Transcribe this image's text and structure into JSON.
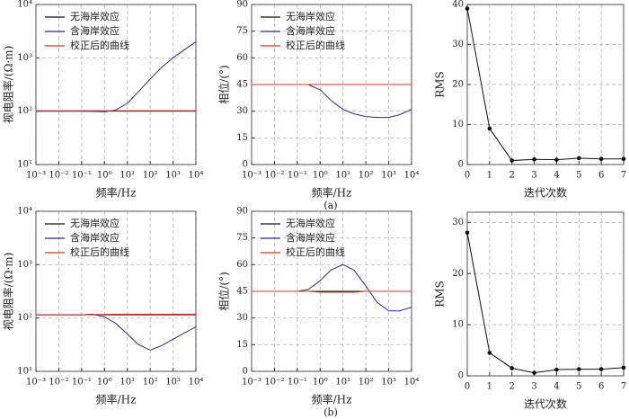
{
  "panel_labels": [
    "(a)",
    "(b)"
  ],
  "chart_data": [
    {
      "type": "line",
      "xscale": "log",
      "yscale": "log",
      "grid": true,
      "legend": "upper left",
      "xlabel": "频率/Hz",
      "ylabel": "视电阻率/(Ω·m)",
      "xlim": [
        0.001,
        10000
      ],
      "ylim": [
        10,
        10000
      ],
      "xticks": [
        {
          "value": 0.001,
          "label": "10⁻³"
        },
        {
          "value": 0.01,
          "label": "10⁻²"
        },
        {
          "value": 0.1,
          "label": "10⁻¹"
        },
        {
          "value": 1,
          "label": "10⁰"
        },
        {
          "value": 10,
          "label": "10¹"
        },
        {
          "value": 100,
          "label": "10²"
        },
        {
          "value": 1000,
          "label": "10³"
        },
        {
          "value": 10000,
          "label": "10⁴"
        }
      ],
      "yticks": [
        {
          "value": 10,
          "label": "10¹"
        },
        {
          "value": 100,
          "label": "10²"
        },
        {
          "value": 1000,
          "label": "10³"
        },
        {
          "value": 10000,
          "label": "10⁴"
        }
      ],
      "x": [
        0.001,
        0.01,
        0.1,
        1,
        3,
        10,
        30,
        100,
        300,
        1000,
        3000,
        10000
      ],
      "series": [
        {
          "name": "无海岸效应",
          "color": "#111111",
          "values": [
            100,
            100,
            100,
            100,
            100,
            100,
            100,
            100,
            100,
            100,
            100,
            100
          ]
        },
        {
          "name": "含海岸效应",
          "color": "#2b2b8f",
          "values": [
            100,
            100,
            100,
            98,
            105,
            140,
            230,
            400,
            650,
            1000,
            1400,
            2000
          ]
        },
        {
          "name": "校正后的曲线",
          "color": "#d03a2f",
          "values": [
            102,
            102,
            102,
            102,
            102,
            102,
            102,
            102,
            102,
            102,
            102,
            102
          ]
        }
      ]
    },
    {
      "type": "line",
      "xscale": "log",
      "yscale": "linear",
      "grid": true,
      "legend": "upper left",
      "xlabel": "频率/Hz",
      "ylabel": "相位/(°)",
      "xlim": [
        0.001,
        10000
      ],
      "ylim": [
        0,
        90
      ],
      "xticks": [
        {
          "value": 0.001,
          "label": "10⁻³"
        },
        {
          "value": 0.01,
          "label": "10⁻²"
        },
        {
          "value": 0.1,
          "label": "10⁻¹"
        },
        {
          "value": 1,
          "label": "10⁰"
        },
        {
          "value": 10,
          "label": "10¹"
        },
        {
          "value": 100,
          "label": "10²"
        },
        {
          "value": 1000,
          "label": "10³"
        },
        {
          "value": 10000,
          "label": "10⁴"
        }
      ],
      "yticks": [
        0,
        15,
        30,
        45,
        60,
        75,
        90
      ],
      "x": [
        0.001,
        0.01,
        0.1,
        0.3,
        1,
        3,
        10,
        30,
        100,
        300,
        1000,
        3000,
        10000
      ],
      "series": [
        {
          "name": "无海岸效应",
          "color": "#111111",
          "values": [
            45,
            45,
            45,
            45,
            45,
            45,
            45,
            45,
            45,
            45,
            45,
            45,
            45
          ]
        },
        {
          "name": "含海岸效应",
          "color": "#2b2b8f",
          "values": [
            45,
            45,
            45,
            45,
            42,
            36,
            31,
            28.5,
            27,
            26.5,
            26.5,
            28,
            31
          ]
        },
        {
          "name": "校正后的曲线",
          "color": "#d03a2f",
          "values": [
            45,
            45,
            45,
            45,
            45,
            45,
            45,
            45,
            45,
            45,
            45,
            45,
            45
          ]
        }
      ]
    },
    {
      "type": "line",
      "markers": true,
      "grid": true,
      "xscale": "linear",
      "yscale": "linear",
      "xlabel": "迭代次数",
      "ylabel": "RMS",
      "xlim": [
        0,
        7
      ],
      "ylim": [
        0,
        40
      ],
      "xticks": [
        0,
        1,
        2,
        3,
        4,
        5,
        6,
        7
      ],
      "yticks": [
        0,
        10,
        20,
        30,
        40
      ],
      "x": [
        0,
        1,
        2,
        3,
        4,
        5,
        6,
        7
      ],
      "series": [
        {
          "color": "#111111",
          "values": [
            39,
            9,
            1,
            1.3,
            1.2,
            1.6,
            1.4,
            1.4
          ]
        }
      ]
    },
    {
      "type": "line",
      "xscale": "log",
      "yscale": "log",
      "grid": true,
      "legend": "upper left",
      "xlabel": "频率/Hz",
      "ylabel": "视电阻率/(Ω·m)",
      "xlim": [
        0.001,
        10000
      ],
      "ylim": [
        10,
        10000
      ],
      "xticks": [
        {
          "value": 0.001,
          "label": "10⁻³"
        },
        {
          "value": 0.01,
          "label": "10⁻²"
        },
        {
          "value": 0.1,
          "label": "10⁻¹"
        },
        {
          "value": 1,
          "label": "10⁰"
        },
        {
          "value": 10,
          "label": "10¹"
        },
        {
          "value": 100,
          "label": "10²"
        },
        {
          "value": 1000,
          "label": "10³"
        },
        {
          "value": 10000,
          "label": "10⁴"
        }
      ],
      "yticks": [
        {
          "value": 10,
          "label": "10¹"
        },
        {
          "value": 100,
          "label": "10²"
        },
        {
          "value": 1000,
          "label": "10³"
        },
        {
          "value": 10000,
          "label": "10⁴"
        }
      ],
      "x": [
        0.001,
        0.01,
        0.1,
        0.3,
        1,
        3,
        10,
        30,
        100,
        300,
        1000,
        3000,
        10000
      ],
      "series": [
        {
          "name": "无海岸效应",
          "color": "#111111",
          "values": [
            115,
            115,
            115,
            115,
            115,
            115,
            115,
            115,
            115,
            115,
            115,
            115,
            115
          ]
        },
        {
          "name": "含海岸效应",
          "color": "#2b2b8f",
          "values": [
            115,
            115,
            115,
            118,
            105,
            80,
            50,
            32,
            25,
            30,
            40,
            52,
            68
          ]
        },
        {
          "name": "校正后的曲线",
          "color": "#d03a2f",
          "values": [
            115,
            115,
            115,
            116,
            117,
            118,
            118,
            118,
            118,
            118,
            118,
            118,
            118
          ]
        }
      ]
    },
    {
      "type": "line",
      "xscale": "log",
      "yscale": "linear",
      "grid": true,
      "legend": "upper left",
      "xlabel": "频率/Hz",
      "ylabel": "相位/(°)",
      "xlim": [
        0.001,
        10000
      ],
      "ylim": [
        0,
        90
      ],
      "xticks": [
        {
          "value": 0.001,
          "label": "10⁻³"
        },
        {
          "value": 0.01,
          "label": "10⁻²"
        },
        {
          "value": 0.1,
          "label": "10⁻¹"
        },
        {
          "value": 1,
          "label": "10⁰"
        },
        {
          "value": 10,
          "label": "10¹"
        },
        {
          "value": 100,
          "label": "10²"
        },
        {
          "value": 1000,
          "label": "10³"
        },
        {
          "value": 10000,
          "label": "10⁴"
        }
      ],
      "yticks": [
        0,
        15,
        30,
        45,
        60,
        75,
        90
      ],
      "x": [
        0.001,
        0.01,
        0.1,
        0.3,
        1,
        3,
        10,
        30,
        100,
        300,
        1000,
        3000,
        10000
      ],
      "series": [
        {
          "name": "无海岸效应",
          "color": "#111111",
          "values": [
            45,
            45,
            45,
            45,
            45,
            45,
            45,
            45,
            45,
            45,
            45,
            45,
            45
          ]
        },
        {
          "name": "含海岸效应",
          "color": "#2b2b8f",
          "values": [
            45,
            45,
            45,
            46,
            51,
            57,
            60,
            57,
            48,
            39,
            34,
            34,
            36
          ]
        },
        {
          "name": "校正后的曲线",
          "color": "#d03a2f",
          "values": [
            45,
            45,
            45,
            45,
            44.5,
            44.5,
            44.5,
            44.5,
            45,
            45,
            45,
            45,
            45
          ]
        }
      ]
    },
    {
      "type": "line",
      "markers": true,
      "grid": true,
      "xscale": "linear",
      "yscale": "linear",
      "xlabel": "迭代次数",
      "ylabel": "RMS",
      "xlim": [
        0,
        7
      ],
      "ylim": [
        0,
        32
      ],
      "xticks": [
        0,
        1,
        2,
        3,
        4,
        5,
        6,
        7
      ],
      "yticks": [
        0,
        10,
        20,
        30
      ],
      "x": [
        0,
        1,
        2,
        3,
        4,
        5,
        6,
        7
      ],
      "series": [
        {
          "color": "#111111",
          "values": [
            28,
            4.5,
            1.5,
            0.6,
            1.2,
            1.3,
            1.3,
            1.6
          ]
        }
      ]
    }
  ]
}
